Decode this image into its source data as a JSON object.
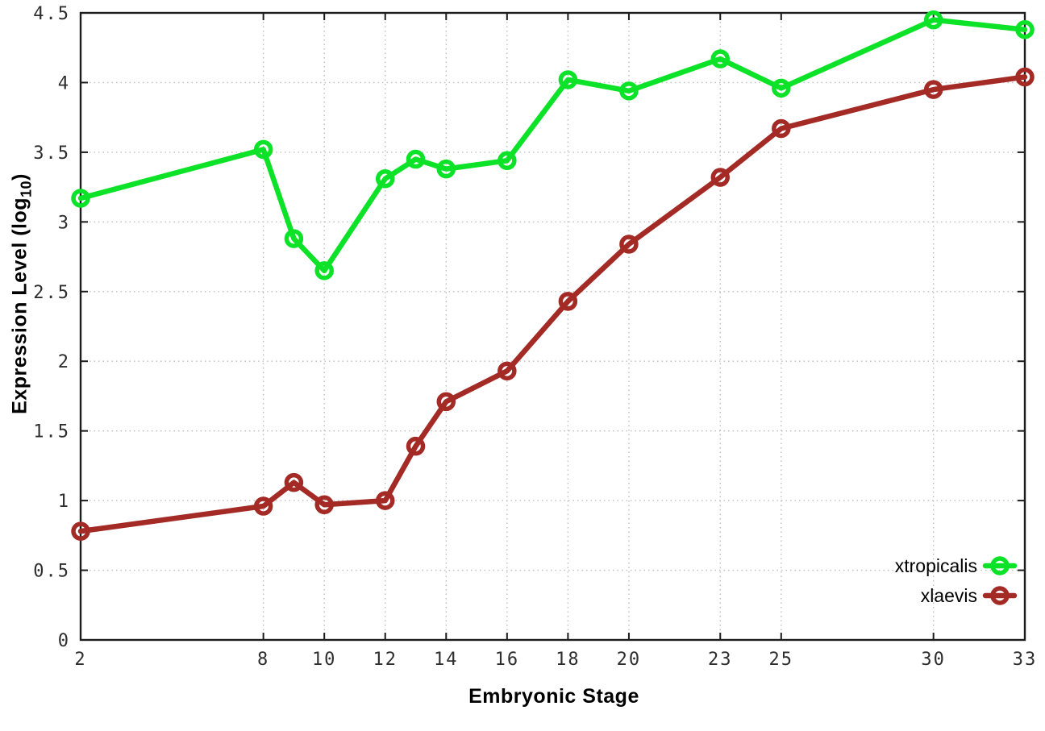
{
  "chart_data": {
    "type": "line",
    "title": "",
    "xlabel": "Embryonic Stage",
    "ylabel": "Expression Level (log10)",
    "ylabel_parts": {
      "main": "Expression Level (log",
      "sub": "10",
      "close": ")"
    },
    "xlim": [
      2,
      33
    ],
    "ylim": [
      0,
      4.5
    ],
    "x_ticks": [
      2,
      8,
      10,
      12,
      14,
      16,
      18,
      20,
      23,
      25,
      30,
      33
    ],
    "y_ticks": [
      0,
      0.5,
      1,
      1.5,
      2,
      2.5,
      3,
      3.5,
      4,
      4.5
    ],
    "grid": true,
    "legend_position": "bottom-right-inside",
    "x": [
      2,
      8,
      9,
      10,
      12,
      13,
      14,
      16,
      18,
      20,
      23,
      25,
      30,
      33
    ],
    "series": [
      {
        "name": "xtropicalis",
        "color": "#0ce228",
        "values": [
          3.17,
          3.52,
          2.88,
          2.65,
          3.31,
          3.45,
          3.38,
          3.44,
          4.02,
          3.94,
          4.17,
          3.96,
          4.45,
          4.38
        ]
      },
      {
        "name": "xlaevis",
        "color": "#a42a25",
        "values": [
          0.78,
          0.96,
          1.13,
          0.97,
          1.0,
          1.39,
          1.71,
          1.93,
          2.43,
          2.84,
          3.32,
          3.67,
          3.95,
          4.04
        ]
      }
    ],
    "colors": {
      "background": "#ffffff",
      "grid": "#bdbdbd",
      "axis_border": "#1c1c1c",
      "tick_text": "#2e2e2e"
    }
  }
}
